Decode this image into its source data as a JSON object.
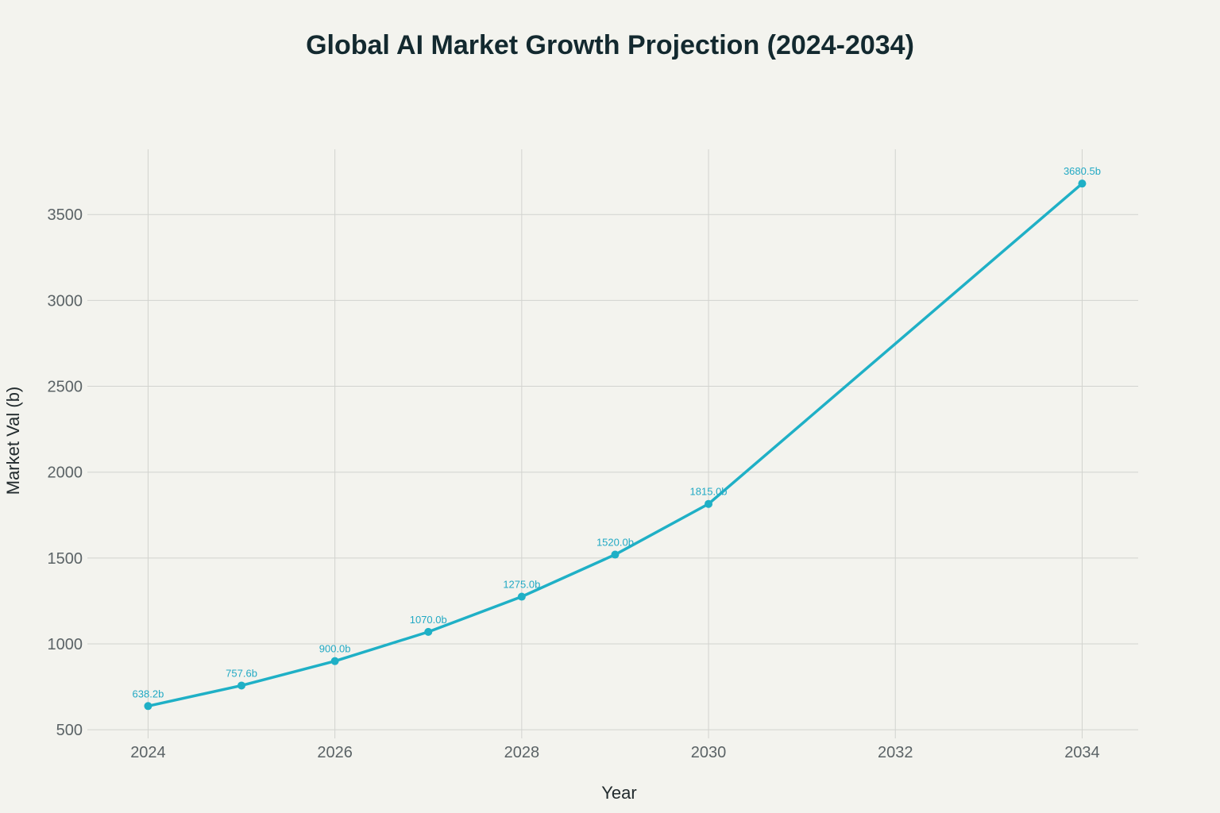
{
  "chart_data": {
    "type": "line",
    "title": "Global AI Market Growth Projection (2024-2034)",
    "xlabel": "Year",
    "ylabel": "Market Val (b)",
    "xlim": [
      2023.35,
      2034.6
    ],
    "ylim": [
      450,
      3880
    ],
    "x_ticks": [
      2024,
      2026,
      2028,
      2030,
      2032,
      2034
    ],
    "y_ticks": [
      500,
      1000,
      1500,
      2000,
      2500,
      3000,
      3500
    ],
    "grid": true,
    "legend": "none",
    "line_color": "#1fb0c6",
    "series": [
      {
        "x": [
          2024,
          2025,
          2026,
          2027,
          2028,
          2029,
          2030,
          2034
        ],
        "values": [
          638.2,
          757.6,
          900.0,
          1070.0,
          1275.0,
          1520.0,
          1815.0,
          3680.5
        ],
        "labels": [
          "638.2b",
          "757.6b",
          "900.0b",
          "1070.0b",
          "1275.0b",
          "1520.0b",
          "1815.0b",
          "3680.5b"
        ]
      }
    ]
  }
}
